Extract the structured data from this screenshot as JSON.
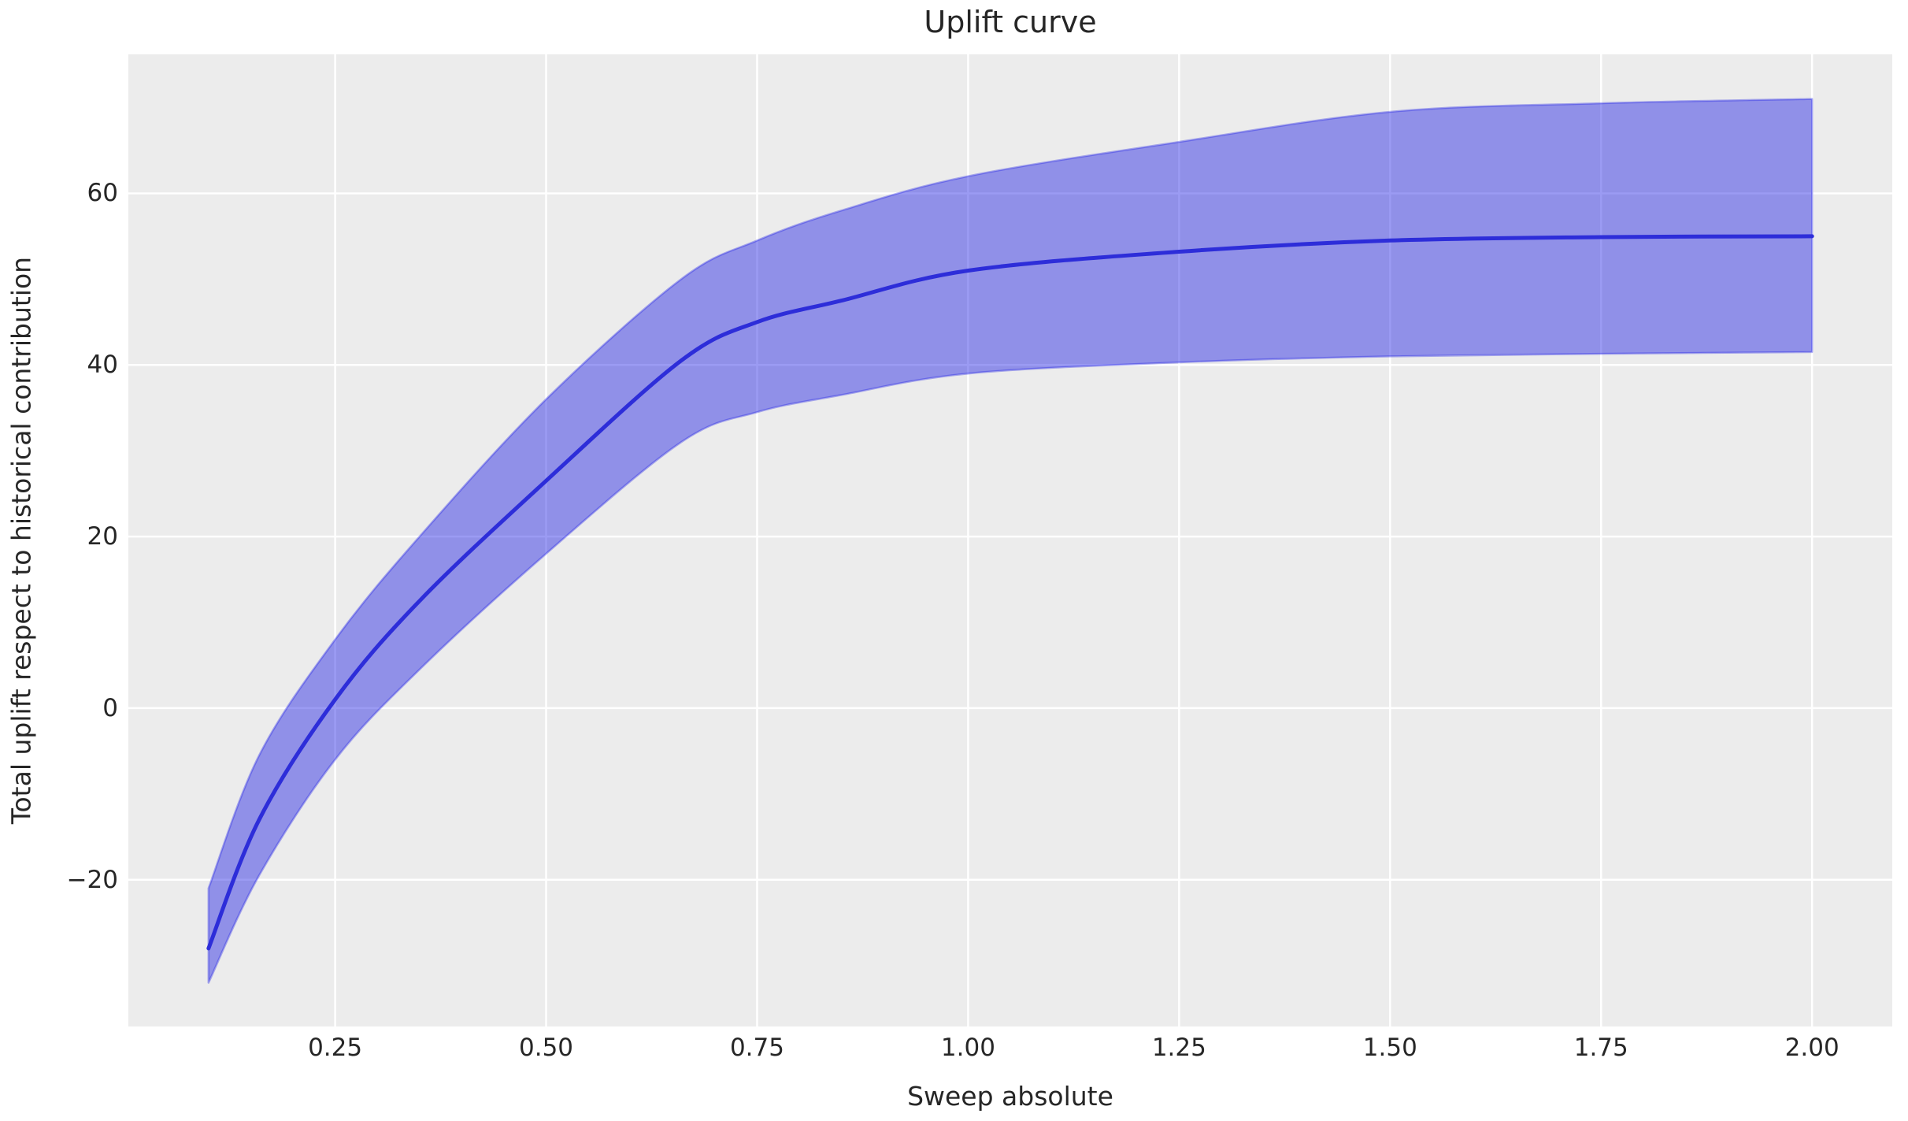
{
  "title": "Uplift curve",
  "axes": {
    "xlabel": "Sweep absolute",
    "ylabel": "Total uplift respect to historical contribution",
    "xtick_labels": [
      "0.25",
      "0.50",
      "0.75",
      "1.00",
      "1.25",
      "1.50",
      "1.75",
      "2.00"
    ],
    "ytick_labels": [
      "60",
      "40",
      "20",
      "0",
      "−20"
    ]
  },
  "colors": {
    "figure_background": "#ffffff",
    "plot_background": "#ececec",
    "gridline": "#ffffff",
    "line": "#2d2dd9",
    "band_fill": "rgba(28,28,228,0.44)",
    "band_edge": "rgba(28,28,228,0.35)",
    "text": "#262626"
  },
  "chart_data": {
    "type": "line",
    "title": "Uplift curve",
    "xlabel": "Sweep absolute",
    "ylabel": "Total uplift respect to historical contribution",
    "xlim": [
      0.005,
      2.095
    ],
    "ylim": [
      -37.1,
      76.2
    ],
    "xticks": [
      0.25,
      0.5,
      0.75,
      1.0,
      1.25,
      1.5,
      1.75,
      2.0
    ],
    "yticks": [
      60,
      40,
      20,
      0,
      -20
    ],
    "grid": true,
    "legend": false,
    "x": [
      0.1,
      0.16,
      0.25,
      0.35,
      0.5,
      0.66,
      0.75,
      0.85,
      1.0,
      1.25,
      1.5,
      1.75,
      2.0
    ],
    "series": [
      {
        "name": "uplift-mean",
        "kind": "line",
        "values": [
          -28,
          -13,
          1,
          12.5,
          26.5,
          40.5,
          45,
          47.5,
          51,
          53.2,
          54.5,
          54.9,
          55
        ]
      },
      {
        "name": "confidence-band-upper",
        "kind": "band-upper",
        "values": [
          -21,
          -5.5,
          8,
          20,
          36,
          50,
          54.5,
          58,
          62,
          66,
          69.5,
          70.5,
          71
        ]
      },
      {
        "name": "confidence-band-lower",
        "kind": "band-lower",
        "values": [
          -32,
          -19.5,
          -6,
          4.5,
          18,
          31,
          34.5,
          36.5,
          39,
          40.3,
          41,
          41.3,
          41.5
        ]
      }
    ]
  }
}
